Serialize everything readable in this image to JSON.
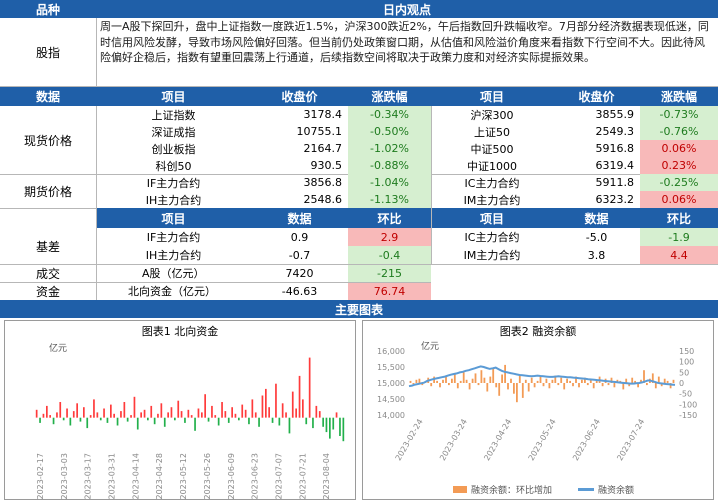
{
  "header": {
    "col1": "品种",
    "col2": "日内观点"
  },
  "stock_index": {
    "label": "股指",
    "commentary": "周一A股下探回升，盘中上证指数一度跌近1.5%，沪深300跌近2%，午后指数回升跌幅收窄。7月部分经济数据表现低迷，同时信用风险发酵，导致市场风险偏好回落。但当前仍处政策窗口期，从估值和风险溢价角度来看指数下行空间不大。因此待风险偏好企稳后，指数有望重回震荡上行通道，后续指数空间将取决于政策力度和对经济实际提振效果。"
  },
  "table1_header": [
    "数据",
    "项目",
    "收盘价",
    "涨跌幅",
    "项目",
    "收盘价",
    "涨跌幅"
  ],
  "spot": {
    "label": "现货价格",
    "rows": [
      {
        "n1": "上证指数",
        "p1": "3178.4",
        "c1": "-0.34%",
        "s1": "neg",
        "n2": "沪深300",
        "p2": "3855.9",
        "c2": "-0.73%",
        "s2": "neg"
      },
      {
        "n1": "深证成指",
        "p1": "10755.1",
        "c1": "-0.50%",
        "s1": "neg",
        "n2": "上证50",
        "p2": "2549.3",
        "c2": "-0.76%",
        "s2": "neg"
      },
      {
        "n1": "创业板指",
        "p1": "2164.7",
        "c1": "-1.02%",
        "s1": "neg",
        "n2": "中证500",
        "p2": "5916.8",
        "c2": "0.06%",
        "s2": "pos"
      },
      {
        "n1": "科创50",
        "p1": "930.5",
        "c1": "-0.88%",
        "s1": "neg",
        "n2": "中证1000",
        "p2": "6319.4",
        "c2": "0.23%",
        "s2": "pos"
      }
    ]
  },
  "futures": {
    "label": "期货价格",
    "rows": [
      {
        "n1": "IF主力合约",
        "p1": "3856.8",
        "c1": "-1.04%",
        "s1": "neg",
        "n2": "IC主力合约",
        "p2": "5911.8",
        "c2": "-0.25%",
        "s2": "neg"
      },
      {
        "n1": "IH主力合约",
        "p1": "2548.6",
        "c1": "-1.13%",
        "s1": "neg",
        "n2": "IM主力合约",
        "p2": "6323.2",
        "c2": "0.06%",
        "s2": "pos"
      }
    ]
  },
  "table2_header": [
    "项目",
    "数据",
    "环比",
    "项目",
    "数据",
    "环比"
  ],
  "basis": {
    "label": "基差",
    "rows": [
      {
        "n1": "IF主力合约",
        "d1": "0.9",
        "m1": "2.9",
        "s1": "pos",
        "n2": "IC主力合约",
        "d2": "-5.0",
        "m2": "-1.9",
        "s2": "neg"
      },
      {
        "n1": "IH主力合约",
        "d1": "-0.7",
        "m1": "-0.4",
        "s1": "neg",
        "n2": "IM主力合约",
        "d2": "3.8",
        "m2": "4.4",
        "s2": "pos"
      }
    ]
  },
  "turnover": {
    "label": "成交",
    "item": "A股（亿元）",
    "data": "7420",
    "mom": "-215",
    "s": "neg"
  },
  "funds": {
    "label": "资金",
    "item": "北向资金（亿元）",
    "data": "-46.63",
    "mom": "76.74",
    "s": "pos"
  },
  "charts_header": "主要图表",
  "colors": {
    "header_bg": "#1f5fa8",
    "pos_bg": "#f8b9b9",
    "pos_fg": "#c00000",
    "neg_bg": "#d6efd0",
    "neg_fg": "#1e7b1e",
    "bar_up": "#ff3b3b",
    "bar_down": "#22b04b",
    "margin_bar": "#f39b55",
    "margin_line": "#5b9bd5"
  },
  "chart_data": [
    {
      "type": "bar",
      "title": "图表1 北向资金",
      "unit": "亿元",
      "x_ticks": [
        "2023-02-17",
        "2023-03-03",
        "2023-03-17",
        "2023-03-31",
        "2023-04-14",
        "2023-04-28",
        "2023-05-12",
        "2023-05-26",
        "2023-06-09",
        "2023-06-23",
        "2023-07-07",
        "2023-07-21",
        "2023-08-04"
      ],
      "values": [
        30,
        -20,
        15,
        45,
        10,
        -25,
        20,
        60,
        -10,
        35,
        -30,
        25,
        55,
        -15,
        40,
        -40,
        10,
        70,
        20,
        -10,
        35,
        -20,
        50,
        15,
        -30,
        25,
        60,
        -15,
        10,
        80,
        -45,
        20,
        30,
        -10,
        45,
        -25,
        15,
        55,
        -35,
        20,
        40,
        -10,
        65,
        25,
        -20,
        30,
        10,
        -50,
        35,
        20,
        90,
        -15,
        45,
        10,
        -30,
        60,
        25,
        -20,
        40,
        15,
        -10,
        50,
        30,
        -25,
        70,
        20,
        -35,
        85,
        110,
        40,
        -20,
        130,
        -30,
        55,
        20,
        -60,
        100,
        35,
        160,
        70,
        -25,
        230,
        -40,
        45,
        25,
        -35,
        -55,
        -80,
        -45,
        20,
        -70,
        -90
      ],
      "ylim": [
        -120,
        240
      ]
    },
    {
      "type": "bar+line",
      "title": "图表2 融资余额",
      "unit": "亿元",
      "x_ticks": [
        "2023-02-24",
        "2023-03-24",
        "2023-04-24",
        "2023-05-24",
        "2023-06-24",
        "2023-07-24"
      ],
      "left_ylim": [
        14000,
        16000
      ],
      "left_ticks": [
        14000,
        14500,
        15000,
        15500,
        16000
      ],
      "right_ylim": [
        -150,
        150
      ],
      "right_ticks": [
        -150,
        -100,
        -50,
        0,
        50,
        100,
        150
      ],
      "series": [
        {
          "name": "融资余额：环比增加",
          "axis": "right",
          "kind": "bar",
          "values": [
            10,
            -5,
            15,
            20,
            -10,
            5,
            25,
            -15,
            30,
            10,
            -20,
            15,
            35,
            -10,
            20,
            40,
            -25,
            10,
            50,
            15,
            -30,
            20,
            45,
            -10,
            60,
            25,
            -40,
            30,
            70,
            -20,
            -60,
            40,
            85,
            -30,
            20,
            -50,
            -90,
            35,
            -70,
            15,
            -40,
            25,
            -20,
            10,
            30,
            -15,
            20,
            -25,
            15,
            35,
            -10,
            25,
            -30,
            20,
            10,
            -15,
            30,
            -20,
            15,
            25,
            -10,
            20,
            -25,
            10,
            30,
            -15,
            20,
            -10,
            25,
            -20,
            15,
            10,
            -30,
            20,
            -15,
            25,
            10,
            -20,
            15,
            60,
            -10,
            20,
            45,
            -25,
            30,
            -15,
            20,
            10,
            -25,
            15
          ]
        },
        {
          "name": "融资余额",
          "axis": "left",
          "kind": "line",
          "values": [
            14900,
            14920,
            14950,
            14970,
            14990,
            15010,
            15060,
            15090,
            15120,
            15140,
            15160,
            15180,
            15200,
            15230,
            15260,
            15280,
            15300,
            15330,
            15350,
            15380,
            15400,
            15430,
            15460,
            15490,
            15520,
            15500,
            15470,
            15440,
            15460,
            15480,
            15430,
            15380,
            15350,
            15330,
            15310,
            15290,
            15270,
            15250,
            15240,
            15230,
            15220,
            15210,
            15220,
            15230,
            15220,
            15210,
            15200,
            15190,
            15190,
            15200,
            15210,
            15200,
            15190,
            15180,
            15180,
            15170,
            15160,
            15150,
            15140,
            15130,
            15120,
            15110,
            15100,
            15090,
            15080,
            15070,
            15060,
            15050,
            15040,
            15030,
            15020,
            15010,
            15000,
            14990,
            14980,
            14980,
            14990,
            15000,
            15020,
            15050,
            15080,
            15070,
            15040,
            15010,
            14990,
            14980,
            14970,
            14960,
            14950,
            14940
          ]
        }
      ]
    }
  ]
}
